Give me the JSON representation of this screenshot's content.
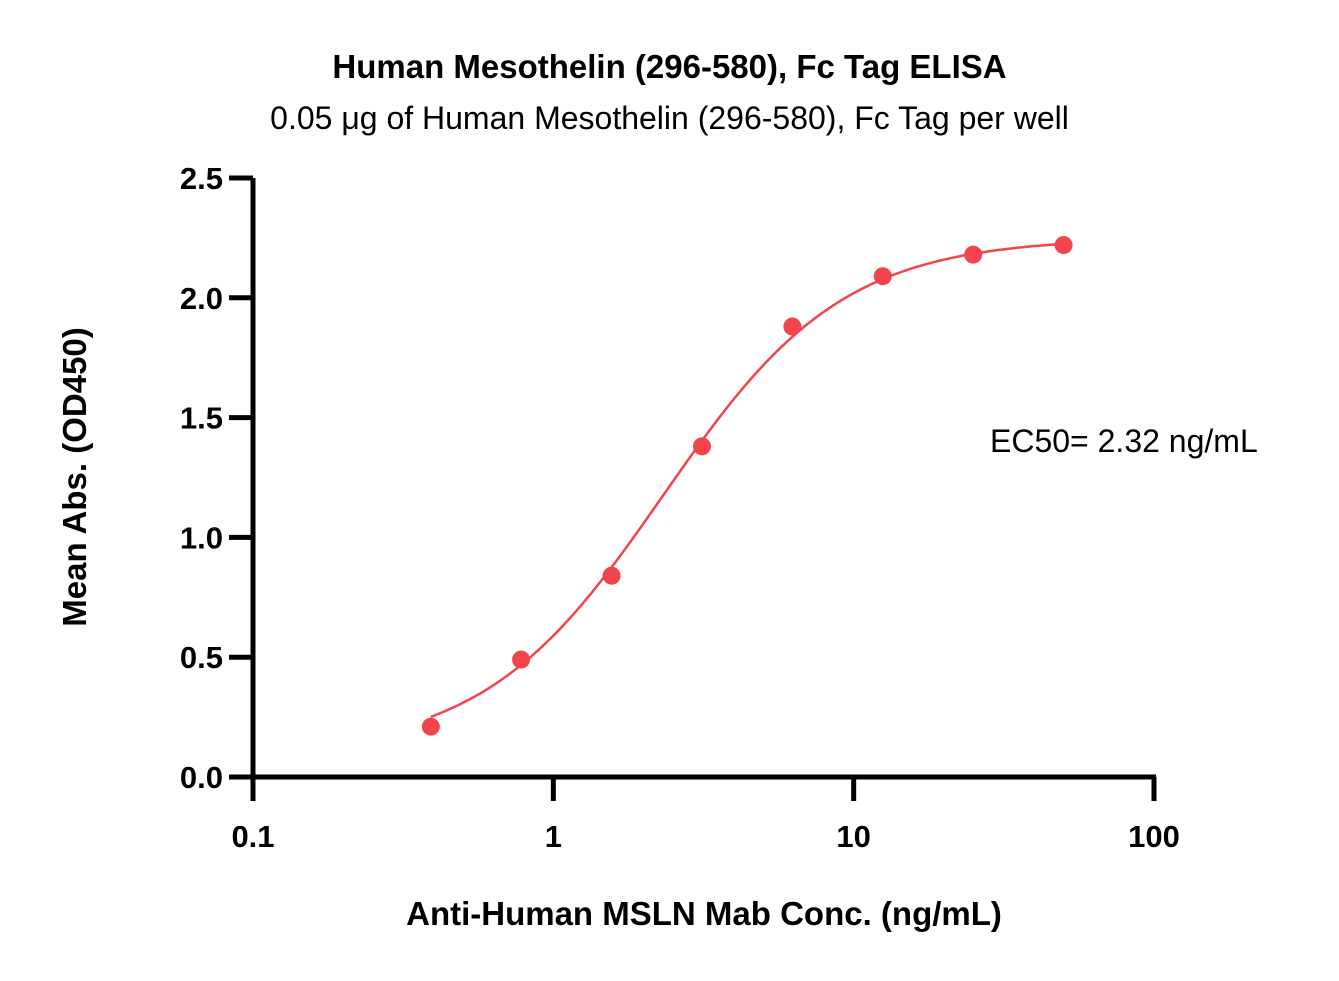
{
  "chart_data": {
    "type": "scatter",
    "title": "Human Mesothelin (296-580), Fc Tag ELISA",
    "subtitle": "0.05 μg of Human Mesothelin (296-580), Fc Tag per well",
    "xlabel": "Anti-Human MSLN Mab Conc. (ng/mL)",
    "ylabel": "Mean Abs. (OD450)",
    "x_scale": "log",
    "xlim": [
      0.1,
      100
    ],
    "ylim": [
      0,
      2.5
    ],
    "x_ticks": [
      "0.1",
      "1",
      "10",
      "100"
    ],
    "x_tick_values": [
      0.1,
      1,
      10,
      100
    ],
    "y_ticks": [
      "0.0",
      "0.5",
      "1.0",
      "1.5",
      "2.0",
      "2.5"
    ],
    "y_tick_values": [
      0,
      0.5,
      1.0,
      1.5,
      2.0,
      2.5
    ],
    "grid": false,
    "series": [
      {
        "x": [
          0.391,
          0.781,
          1.563,
          3.125,
          6.25,
          12.5,
          25,
          50
        ],
        "y": [
          0.21,
          0.49,
          0.84,
          1.38,
          1.88,
          2.09,
          2.18,
          2.22
        ],
        "color": "#f2444c",
        "fit": "4PL"
      }
    ],
    "annotations": [
      "EC50= 2.32 ng/mL"
    ]
  }
}
